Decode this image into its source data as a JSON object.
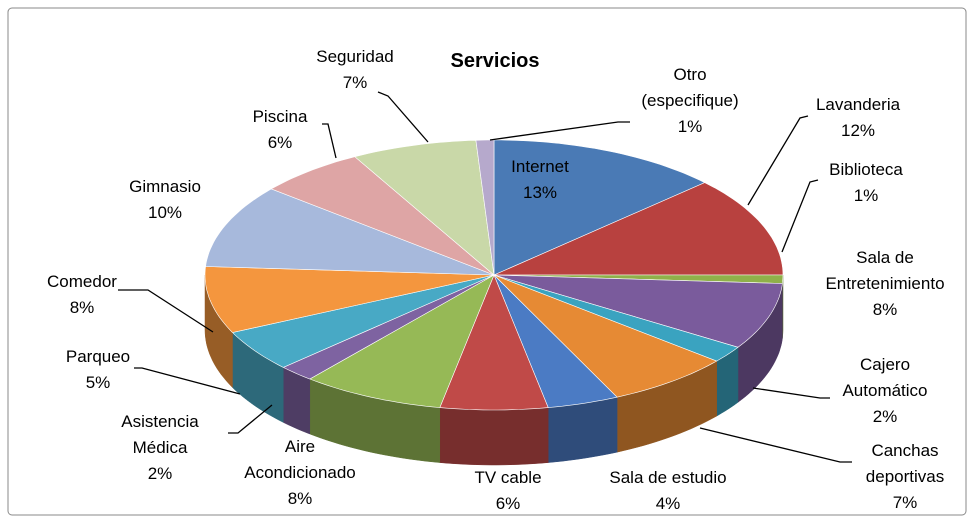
{
  "chart_data": {
    "type": "pie3d",
    "title": "Servicios",
    "categories": [
      "Internet",
      "Lavanderia",
      "Biblioteca",
      "Sala de\nEntretenimiento",
      "Cajero\nAutomático",
      "Canchas\ndeportivas",
      "Sala de estudio",
      "TV cable",
      "Aire\nAcondicionado",
      "Asistencia\nMédica",
      "Parqueo",
      "Comedor",
      "Gimnasio",
      "Piscina",
      "Seguridad",
      "Otro\n(especifique)"
    ],
    "values": [
      13,
      12,
      1,
      8,
      2,
      7,
      4,
      6,
      8,
      2,
      5,
      8,
      10,
      6,
      7,
      1
    ],
    "value_labels": [
      "13%",
      "12%",
      "1%",
      "8%",
      "2%",
      "7%",
      "4%",
      "6%",
      "8%",
      "2%",
      "5%",
      "8%",
      "10%",
      "6%",
      "7%",
      "1%"
    ],
    "colors": [
      "#4a7ab5",
      "#b8413f",
      "#8fb04a",
      "#7a5b9c",
      "#3aa3c0",
      "#e68a34",
      "#4b7bc4",
      "#c04a48",
      "#96b956",
      "#7e63a1",
      "#48a9c5",
      "#f4963e",
      "#a7b9dc",
      "#dea5a5",
      "#c9d8a8",
      "#b6a9cc"
    ]
  }
}
